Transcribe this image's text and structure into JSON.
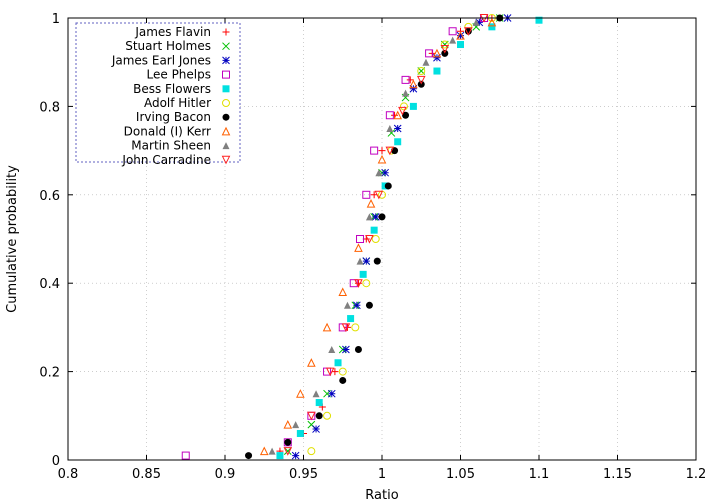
{
  "chart_data": {
    "type": "scatter",
    "title": "",
    "xlabel": "Ratio",
    "ylabel": "Cumulative probability",
    "xlim": [
      0.8,
      1.2
    ],
    "ylim": [
      0,
      1
    ],
    "xticks": [
      0.8,
      0.85,
      0.9,
      0.95,
      1,
      1.05,
      1.1,
      1.15,
      1.2
    ],
    "yticks": [
      0,
      0.2,
      0.4,
      0.6,
      0.8,
      1
    ],
    "xtick_labels": [
      "0.8",
      "0.85",
      "0.9",
      "0.95",
      "1",
      "1.05",
      "1.1",
      "1.15",
      "1.2"
    ],
    "ytick_labels": [
      "0",
      "0.2",
      "0.4",
      "0.6",
      "0.8",
      "1"
    ],
    "grid": true,
    "legend_position": "top-left",
    "series": [
      {
        "name": "James Flavin",
        "color": "#ff0000",
        "marker": "plus",
        "points": [
          [
            0.935,
            0.02
          ],
          [
            0.95,
            0.06
          ],
          [
            0.962,
            0.12
          ],
          [
            0.97,
            0.2
          ],
          [
            0.978,
            0.3
          ],
          [
            0.985,
            0.4
          ],
          [
            0.99,
            0.5
          ],
          [
            0.995,
            0.6
          ],
          [
            1.0,
            0.7
          ],
          [
            1.008,
            0.78
          ],
          [
            1.018,
            0.86
          ],
          [
            1.032,
            0.92
          ],
          [
            1.05,
            0.97
          ],
          [
            1.07,
            1.0
          ]
        ]
      },
      {
        "name": "Stuart Holmes",
        "color": "#00c000",
        "marker": "cross",
        "points": [
          [
            0.94,
            0.02
          ],
          [
            0.955,
            0.08
          ],
          [
            0.965,
            0.15
          ],
          [
            0.975,
            0.25
          ],
          [
            0.983,
            0.35
          ],
          [
            0.99,
            0.45
          ],
          [
            0.995,
            0.55
          ],
          [
            1.0,
            0.65
          ],
          [
            1.006,
            0.74
          ],
          [
            1.015,
            0.82
          ],
          [
            1.025,
            0.88
          ],
          [
            1.04,
            0.94
          ],
          [
            1.06,
            0.98
          ],
          [
            1.075,
            1.0
          ]
        ]
      },
      {
        "name": "James Earl Jones",
        "color": "#0000c0",
        "marker": "star",
        "points": [
          [
            0.945,
            0.01
          ],
          [
            0.958,
            0.07
          ],
          [
            0.968,
            0.15
          ],
          [
            0.977,
            0.25
          ],
          [
            0.984,
            0.35
          ],
          [
            0.99,
            0.45
          ],
          [
            0.996,
            0.55
          ],
          [
            1.002,
            0.65
          ],
          [
            1.01,
            0.75
          ],
          [
            1.02,
            0.84
          ],
          [
            1.035,
            0.91
          ],
          [
            1.05,
            0.96
          ],
          [
            1.062,
            0.99
          ],
          [
            1.08,
            1.0
          ]
        ]
      },
      {
        "name": "Lee Phelps",
        "color": "#c000c0",
        "marker": "square",
        "points": [
          [
            0.875,
            0.01
          ],
          [
            0.94,
            0.04
          ],
          [
            0.955,
            0.1
          ],
          [
            0.965,
            0.2
          ],
          [
            0.975,
            0.3
          ],
          [
            0.982,
            0.4
          ],
          [
            0.986,
            0.5
          ],
          [
            0.99,
            0.6
          ],
          [
            0.995,
            0.7
          ],
          [
            1.005,
            0.78
          ],
          [
            1.015,
            0.86
          ],
          [
            1.03,
            0.92
          ],
          [
            1.045,
            0.97
          ],
          [
            1.065,
            1.0
          ]
        ]
      },
      {
        "name": "Bess Flowers",
        "color": "#00e0e0",
        "marker": "filled-square",
        "points": [
          [
            0.935,
            0.01
          ],
          [
            0.948,
            0.06
          ],
          [
            0.96,
            0.13
          ],
          [
            0.972,
            0.22
          ],
          [
            0.98,
            0.32
          ],
          [
            0.988,
            0.42
          ],
          [
            0.995,
            0.52
          ],
          [
            1.002,
            0.62
          ],
          [
            1.01,
            0.72
          ],
          [
            1.02,
            0.8
          ],
          [
            1.035,
            0.88
          ],
          [
            1.05,
            0.94
          ],
          [
            1.07,
            0.98
          ],
          [
            1.1,
            0.995
          ]
        ]
      },
      {
        "name": "Adolf Hitler",
        "color": "#e0e000",
        "marker": "circle",
        "points": [
          [
            0.955,
            0.02
          ],
          [
            0.965,
            0.1
          ],
          [
            0.975,
            0.2
          ],
          [
            0.983,
            0.3
          ],
          [
            0.99,
            0.4
          ],
          [
            0.996,
            0.5
          ],
          [
            1.0,
            0.6
          ],
          [
            1.006,
            0.7
          ],
          [
            1.014,
            0.8
          ],
          [
            1.025,
            0.88
          ],
          [
            1.04,
            0.94
          ],
          [
            1.055,
            0.98
          ],
          [
            1.07,
            1.0
          ]
        ]
      },
      {
        "name": "Irving Bacon",
        "color": "#000000",
        "marker": "filled-circle",
        "points": [
          [
            0.915,
            0.01
          ],
          [
            0.94,
            0.04
          ],
          [
            0.96,
            0.1
          ],
          [
            0.975,
            0.18
          ],
          [
            0.985,
            0.25
          ],
          [
            0.992,
            0.35
          ],
          [
            0.997,
            0.45
          ],
          [
            1.0,
            0.55
          ],
          [
            1.004,
            0.62
          ],
          [
            1.008,
            0.7
          ],
          [
            1.015,
            0.78
          ],
          [
            1.025,
            0.85
          ],
          [
            1.04,
            0.92
          ],
          [
            1.055,
            0.97
          ],
          [
            1.075,
            1.0
          ]
        ]
      },
      {
        "name": "Donald (I) Kerr",
        "color": "#ff6000",
        "marker": "triangle",
        "points": [
          [
            0.925,
            0.02
          ],
          [
            0.94,
            0.08
          ],
          [
            0.948,
            0.15
          ],
          [
            0.955,
            0.22
          ],
          [
            0.965,
            0.3
          ],
          [
            0.975,
            0.38
          ],
          [
            0.985,
            0.48
          ],
          [
            0.993,
            0.58
          ],
          [
            1.0,
            0.68
          ],
          [
            1.01,
            0.78
          ],
          [
            1.02,
            0.85
          ],
          [
            1.035,
            0.92
          ],
          [
            1.05,
            0.96
          ],
          [
            1.07,
            0.99
          ]
        ]
      },
      {
        "name": "Martin Sheen",
        "color": "#808080",
        "marker": "filled-triangle",
        "points": [
          [
            0.93,
            0.02
          ],
          [
            0.945,
            0.08
          ],
          [
            0.958,
            0.15
          ],
          [
            0.968,
            0.25
          ],
          [
            0.978,
            0.35
          ],
          [
            0.986,
            0.45
          ],
          [
            0.992,
            0.55
          ],
          [
            0.998,
            0.65
          ],
          [
            1.005,
            0.75
          ],
          [
            1.015,
            0.83
          ],
          [
            1.028,
            0.9
          ],
          [
            1.045,
            0.95
          ],
          [
            1.06,
            0.99
          ]
        ]
      },
      {
        "name": "John Carradine",
        "color": "#ff2020",
        "marker": "down-triangle",
        "points": [
          [
            0.94,
            0.02
          ],
          [
            0.955,
            0.1
          ],
          [
            0.967,
            0.2
          ],
          [
            0.977,
            0.3
          ],
          [
            0.985,
            0.4
          ],
          [
            0.992,
            0.5
          ],
          [
            0.998,
            0.6
          ],
          [
            1.005,
            0.7
          ],
          [
            1.013,
            0.79
          ],
          [
            1.025,
            0.86
          ],
          [
            1.04,
            0.93
          ],
          [
            1.055,
            0.97
          ],
          [
            1.065,
            1.0
          ]
        ]
      }
    ]
  }
}
